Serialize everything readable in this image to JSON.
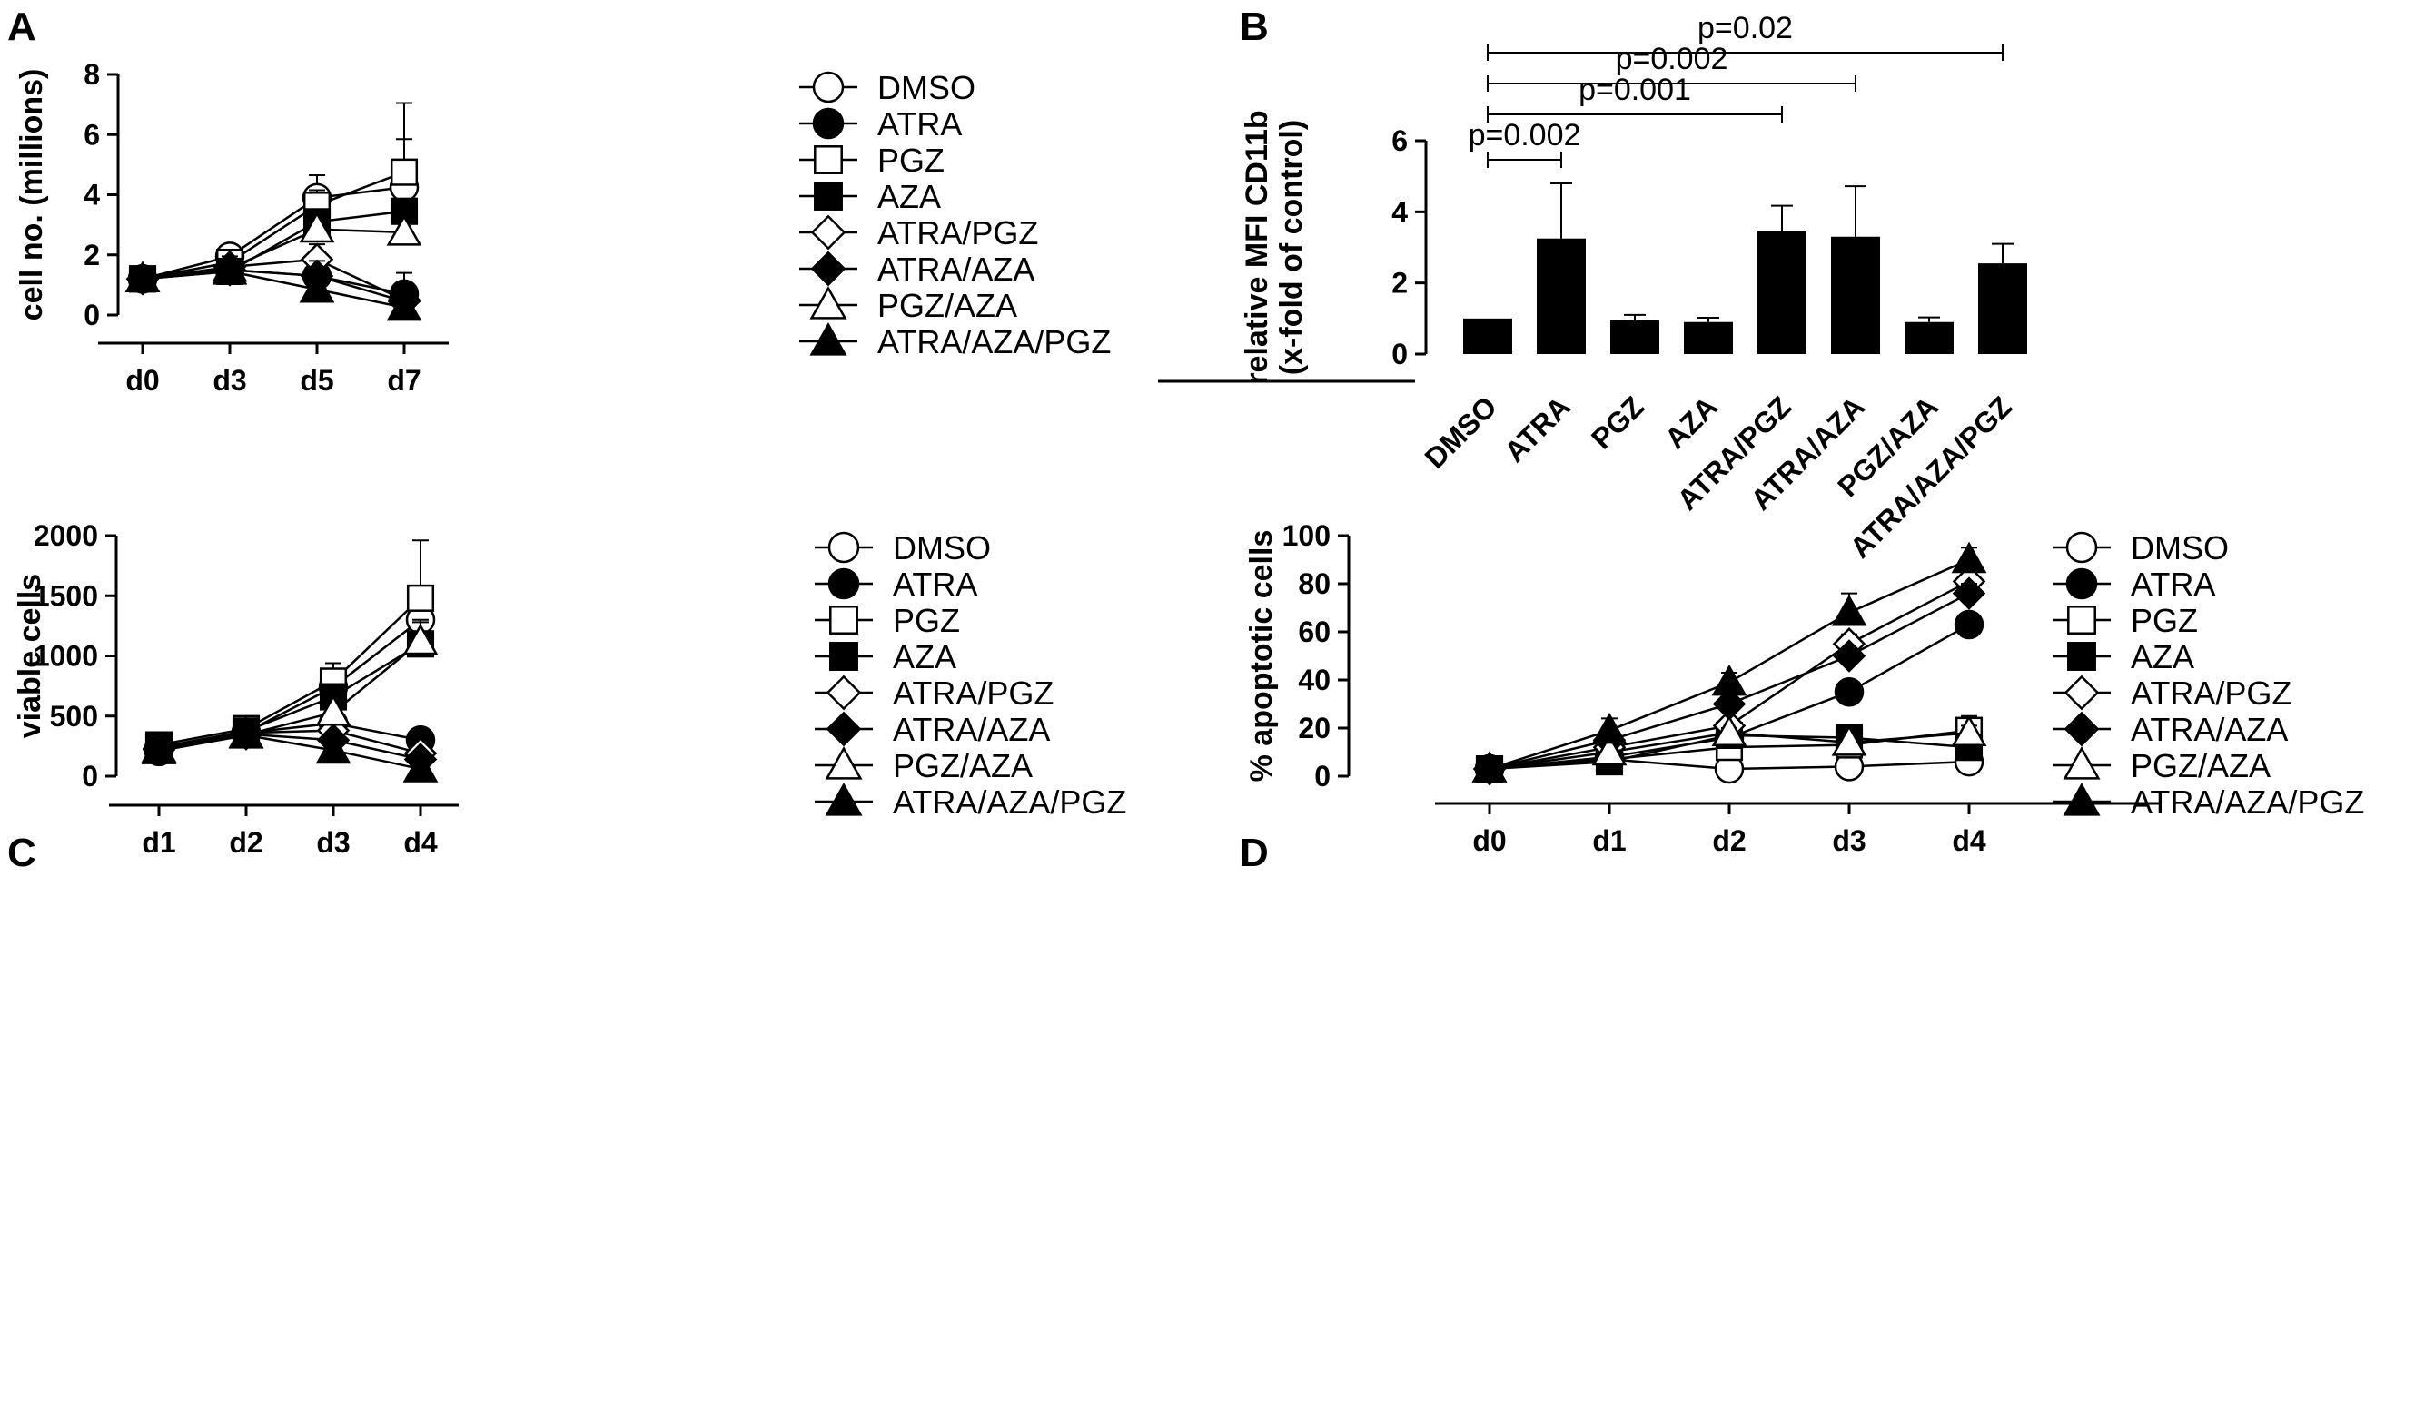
{
  "chart_data": [
    {
      "id": "A",
      "panel_label": "A",
      "type": "line",
      "ylabel": "cell no. (millions)",
      "categories": [
        "d0",
        "d3",
        "d5",
        "d7"
      ],
      "ylim": [
        0,
        8
      ],
      "yticks": [
        "0",
        "2",
        "4",
        "6",
        "8"
      ],
      "series": [
        {
          "name": "DMSO",
          "marker": "circle-open",
          "values": [
            1.2,
            1.95,
            3.9,
            4.25
          ],
          "err": [
            0.1,
            0.25,
            0.75,
            1.6
          ]
        },
        {
          "name": "ATRA",
          "marker": "circle-filled",
          "values": [
            1.2,
            1.5,
            1.3,
            0.7
          ],
          "err": [
            0.1,
            0.2,
            0.4,
            0.7
          ]
        },
        {
          "name": "PGZ",
          "marker": "square-open",
          "values": [
            1.2,
            1.75,
            3.65,
            4.75
          ],
          "err": [
            0.1,
            0.2,
            0.5,
            2.3
          ]
        },
        {
          "name": "AZA",
          "marker": "square-filled",
          "values": [
            1.2,
            1.45,
            3.1,
            3.45
          ],
          "err": [
            0.1,
            0.2,
            0.4,
            0.3
          ]
        },
        {
          "name": "ATRA/PGZ",
          "marker": "diamond-open",
          "values": [
            1.2,
            1.6,
            1.85,
            0.5
          ],
          "err": [
            0.1,
            0.2,
            0.5,
            0.4
          ]
        },
        {
          "name": "ATRA/AZA",
          "marker": "diamond-filled",
          "values": [
            1.2,
            1.5,
            1.3,
            0.45
          ],
          "err": [
            0.1,
            0.2,
            0.5,
            0.35
          ]
        },
        {
          "name": "PGZ/AZA",
          "marker": "triangle-open",
          "values": [
            1.2,
            1.55,
            2.85,
            2.75
          ],
          "err": [
            0.1,
            0.2,
            0.4,
            0.3
          ]
        },
        {
          "name": "ATRA/AZA/PGZ",
          "marker": "triangle-filled",
          "values": [
            1.2,
            1.45,
            0.85,
            0.25
          ],
          "err": [
            0.1,
            0.5,
            0.6,
            0.2
          ]
        }
      ]
    },
    {
      "id": "B",
      "panel_label": "B",
      "type": "bar",
      "ylabel": [
        "relative MFI CD11b",
        "(x-fold of control)"
      ],
      "categories": [
        "DMSO",
        "ATRA",
        "PGZ",
        "AZA",
        "ATRA/PGZ",
        "ATRA/AZA",
        "PGZ/AZA",
        "ATRA/AZA/PGZ"
      ],
      "values": [
        1.0,
        3.25,
        0.95,
        0.9,
        3.45,
        3.3,
        0.9,
        2.55
      ],
      "err": [
        0.0,
        1.55,
        0.15,
        0.12,
        0.72,
        1.42,
        0.13,
        0.55
      ],
      "ylim": [
        0,
        6
      ],
      "yticks": [
        "0",
        "2",
        "4",
        "6"
      ],
      "significance": [
        {
          "label": "p=0.002",
          "from": 0,
          "to": 1
        },
        {
          "label": "p=0.001",
          "from": 0,
          "to": 4
        },
        {
          "label": "p=0.002",
          "from": 0,
          "to": 5
        },
        {
          "label": "p=0.02",
          "from": 0,
          "to": 7
        }
      ]
    },
    {
      "id": "C",
      "panel_label": "C",
      "type": "line",
      "ylabel": "viable cells",
      "categories": [
        "d1",
        "d2",
        "d3",
        "d4"
      ],
      "ylim": [
        0,
        2000
      ],
      "yticks": [
        "0",
        "500",
        "1000",
        "1500",
        "2000"
      ],
      "series": [
        {
          "name": "DMSO",
          "marker": "circle-open",
          "values": [
            205,
            365,
            740,
            1300
          ],
          "err": [
            40,
            40,
            120,
            270
          ]
        },
        {
          "name": "ATRA",
          "marker": "circle-filled",
          "values": [
            230,
            360,
            440,
            300
          ],
          "err": [
            40,
            40,
            60,
            40
          ]
        },
        {
          "name": "PGZ",
          "marker": "square-open",
          "values": [
            260,
            395,
            790,
            1480
          ],
          "err": [
            40,
            50,
            150,
            480
          ]
        },
        {
          "name": "AZA",
          "marker": "square-filled",
          "values": [
            240,
            375,
            660,
            1100
          ],
          "err": [
            40,
            40,
            100,
            200
          ]
        },
        {
          "name": "ATRA/PGZ",
          "marker": "diamond-open",
          "values": [
            230,
            360,
            380,
            190
          ],
          "err": [
            40,
            40,
            60,
            40
          ]
        },
        {
          "name": "ATRA/AZA",
          "marker": "diamond-filled",
          "values": [
            220,
            350,
            300,
            140
          ],
          "err": [
            40,
            40,
            50,
            30
          ]
        },
        {
          "name": "PGZ/AZA",
          "marker": "triangle-open",
          "values": [
            225,
            345,
            530,
            1120
          ],
          "err": [
            40,
            40,
            80,
            160
          ]
        },
        {
          "name": "ATRA/AZA/PGZ",
          "marker": "triangle-filled",
          "values": [
            210,
            340,
            215,
            60
          ],
          "err": [
            40,
            40,
            100,
            30
          ]
        }
      ]
    },
    {
      "id": "D",
      "panel_label": "D",
      "type": "line",
      "ylabel": "% apoptotic cells",
      "categories": [
        "d0",
        "d1",
        "d2",
        "d3",
        "d4"
      ],
      "ylim": [
        0,
        100
      ],
      "yticks": [
        "0",
        "20",
        "40",
        "60",
        "80",
        "100"
      ],
      "series": [
        {
          "name": "DMSO",
          "marker": "circle-open",
          "values": [
            3,
            7,
            3,
            4,
            6
          ],
          "err": [
            1,
            2,
            1,
            1,
            1
          ]
        },
        {
          "name": "ATRA",
          "marker": "circle-filled",
          "values": [
            3,
            8,
            16,
            35,
            63
          ],
          "err": [
            1,
            2,
            3,
            2,
            3
          ]
        },
        {
          "name": "PGZ",
          "marker": "square-open",
          "values": [
            3,
            7,
            12,
            13,
            19
          ],
          "err": [
            1,
            2,
            3,
            3,
            6
          ]
        },
        {
          "name": "AZA",
          "marker": "square-filled",
          "values": [
            3,
            6,
            17,
            16,
            12
          ],
          "err": [
            1,
            2,
            2,
            2,
            3
          ]
        },
        {
          "name": "ATRA/PGZ",
          "marker": "diamond-open",
          "values": [
            3,
            12,
            21,
            55,
            81
          ],
          "err": [
            1,
            2,
            3,
            4,
            4
          ]
        },
        {
          "name": "ATRA/AZA",
          "marker": "diamond-filled",
          "values": [
            3,
            15,
            30,
            50,
            76
          ],
          "err": [
            1,
            2,
            3,
            3,
            4
          ]
        },
        {
          "name": "PGZ/AZA",
          "marker": "triangle-open",
          "values": [
            3,
            10,
            18,
            14,
            18
          ],
          "err": [
            1,
            2,
            2,
            2,
            3
          ]
        },
        {
          "name": "ATRA/AZA/PGZ",
          "marker": "triangle-filled",
          "values": [
            3,
            19,
            39,
            68,
            90
          ],
          "err": [
            1,
            5,
            4,
            8,
            5
          ]
        }
      ]
    }
  ]
}
